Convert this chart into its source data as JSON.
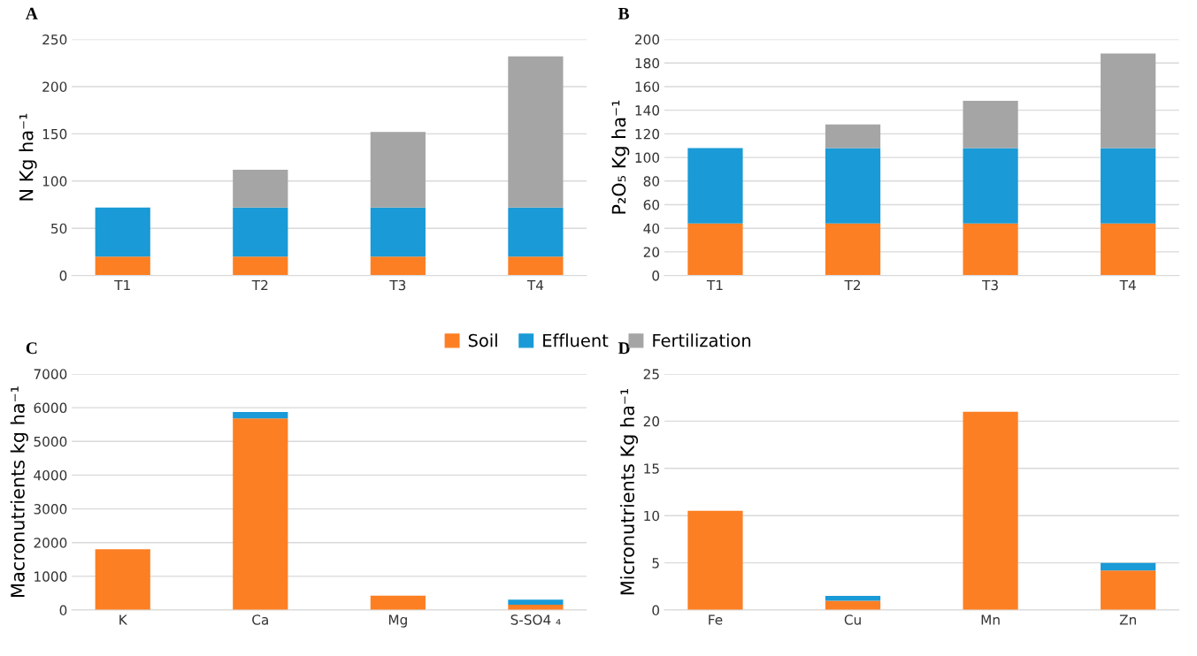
{
  "chart_data": [
    {
      "type": "bar",
      "title": "A",
      "ylabel": "N Kg ha⁻¹",
      "categories": [
        "T1",
        "T2",
        "T3",
        "T4"
      ],
      "stacked": true,
      "ylim": [
        0,
        250
      ],
      "yticks": [
        0,
        50,
        100,
        150,
        200,
        250
      ],
      "grid": "y",
      "legend": "bottom",
      "series": [
        {
          "name": "Soil",
          "color": "#fd7f23",
          "values": [
            20,
            20,
            20,
            20
          ]
        },
        {
          "name": "Effluent",
          "color": "#1a9ad6",
          "values": [
            52,
            52,
            52,
            52
          ]
        },
        {
          "name": "Fertilization",
          "color": "#a5a5a5",
          "values": [
            0,
            40,
            80,
            160
          ]
        }
      ]
    },
    {
      "type": "bar",
      "title": "B",
      "ylabel": "P₂O₅ Kg ha⁻¹",
      "categories": [
        "T1",
        "T2",
        "T3",
        "T4"
      ],
      "stacked": true,
      "ylim": [
        0,
        200
      ],
      "yticks": [
        0,
        20,
        40,
        60,
        80,
        100,
        120,
        140,
        160,
        180,
        200
      ],
      "grid": "y",
      "series": [
        {
          "color": "#fd7f23",
          "values": [
            44,
            44,
            44,
            44
          ]
        },
        {
          "color": "#1a9ad6",
          "values": [
            64,
            64,
            64,
            64
          ]
        },
        {
          "color": "#a5a5a5",
          "values": [
            0,
            20,
            40,
            80
          ]
        }
      ]
    },
    {
      "type": "bar",
      "title": "C",
      "ylabel": "Macronutrients kg ha⁻¹",
      "categories": [
        "K",
        "Ca",
        "Mg",
        "S-SO4 ₄"
      ],
      "stacked": true,
      "ylim": [
        0,
        7000
      ],
      "yticks": [
        0,
        1000,
        2000,
        3000,
        4000,
        5000,
        6000,
        7000
      ],
      "grid": "y",
      "series": [
        {
          "color": "#fd7f23",
          "values": [
            1800,
            5680,
            430,
            160
          ]
        },
        {
          "color": "#1a9ad6",
          "values": [
            0,
            190,
            0,
            150
          ]
        }
      ]
    },
    {
      "type": "bar",
      "title": "D",
      "ylabel": "Micronutrients Kg ha⁻¹",
      "categories": [
        "Fe",
        "Cu",
        "Mn",
        "Zn"
      ],
      "stacked": true,
      "ylim": [
        0,
        25
      ],
      "yticks": [
        0,
        5,
        10,
        15,
        20,
        25
      ],
      "grid": "y",
      "series": [
        {
          "color": "#fd7f23",
          "values": [
            10.5,
            1.0,
            21,
            4.2
          ]
        },
        {
          "color": "#1a9ad6",
          "values": [
            0,
            0.5,
            0,
            0.8
          ]
        }
      ]
    }
  ]
}
